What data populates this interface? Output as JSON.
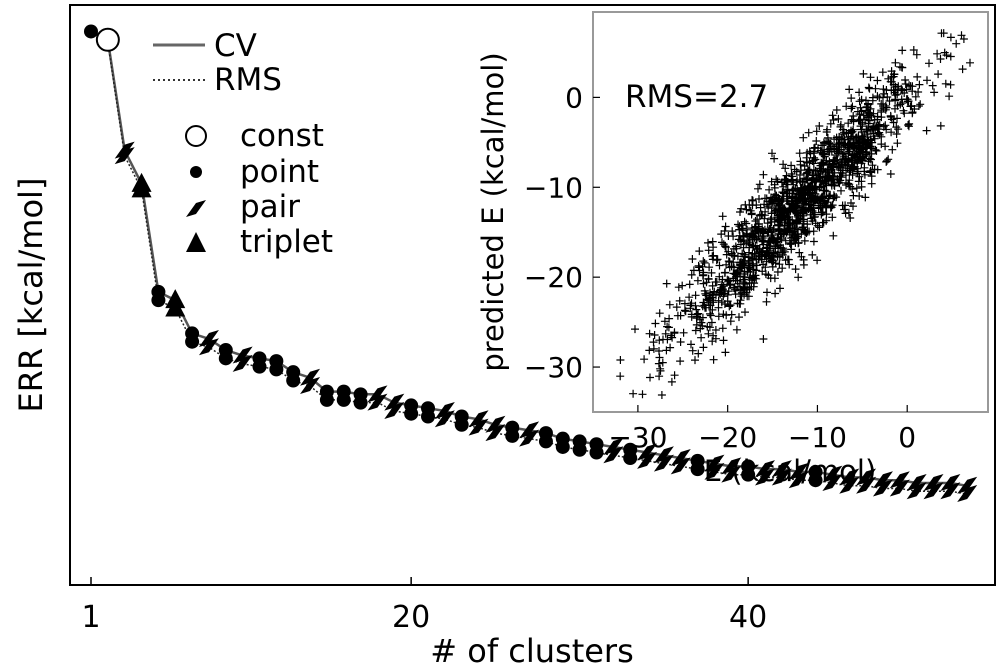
{
  "chart_data": [
    {
      "type": "line",
      "title": "",
      "xlabel": "# of clusters",
      "ylabel": "ERR [kcal/mol]",
      "xlim": [
        0,
        53
      ],
      "ylim": [
        0,
        10
      ],
      "x_ticks": [
        1,
        20,
        40
      ],
      "y_ticks": [],
      "grid": false,
      "legend_position": "top-left",
      "line_legend": [
        {
          "label": "CV",
          "style": "solid"
        },
        {
          "label": "RMS",
          "style": "dotted"
        }
      ],
      "marker_legend": [
        {
          "label": "const",
          "marker": "open-circle"
        },
        {
          "label": "point",
          "marker": "filled-circle"
        },
        {
          "label": "pair",
          "marker": "slash"
        },
        {
          "label": "triplet",
          "marker": "triangle"
        }
      ],
      "series": [
        {
          "name": "CV",
          "x": [
            1,
            2,
            3,
            4,
            5,
            6,
            7,
            8,
            9,
            10,
            11,
            12,
            13,
            14,
            15,
            16,
            17,
            18,
            19,
            20,
            21,
            22,
            23,
            24,
            25,
            26,
            27,
            28,
            29,
            30,
            31,
            32,
            33,
            34,
            35,
            36,
            37,
            38,
            39,
            40,
            41,
            42,
            43,
            44,
            45,
            46,
            47,
            48,
            49,
            50,
            51,
            52,
            53
          ],
          "y": [
            9.45,
            9.3,
            7.3,
            6.7,
            4.75,
            4.6,
            4.0,
            3.9,
            3.7,
            3.6,
            3.55,
            3.5,
            3.3,
            3.2,
            2.95,
            2.95,
            2.9,
            2.9,
            2.75,
            2.7,
            2.65,
            2.6,
            2.5,
            2.45,
            2.35,
            2.3,
            2.25,
            2.2,
            2.1,
            2.05,
            2.0,
            1.95,
            1.9,
            1.85,
            1.8,
            1.75,
            1.7,
            1.65,
            1.6,
            1.6,
            1.55,
            1.55,
            1.5,
            1.5,
            1.45,
            1.4,
            1.4,
            1.35,
            1.35,
            1.3,
            1.3,
            1.3,
            1.25
          ]
        },
        {
          "name": "RMS",
          "x": [
            1,
            2,
            3,
            4,
            5,
            6,
            7,
            8,
            9,
            10,
            11,
            12,
            13,
            14,
            15,
            16,
            17,
            18,
            19,
            20,
            21,
            22,
            23,
            24,
            25,
            26,
            27,
            28,
            29,
            30,
            31,
            32,
            33,
            34,
            35,
            36,
            37,
            38,
            39,
            40,
            41,
            42,
            43,
            44,
            45,
            46,
            47,
            48,
            49,
            50,
            51,
            52,
            53
          ],
          "y": [
            9.45,
            9.25,
            7.2,
            6.6,
            4.6,
            4.45,
            3.85,
            3.75,
            3.55,
            3.45,
            3.4,
            3.35,
            3.15,
            3.05,
            2.8,
            2.8,
            2.75,
            2.75,
            2.6,
            2.55,
            2.5,
            2.45,
            2.35,
            2.3,
            2.2,
            2.15,
            2.1,
            2.05,
            1.95,
            1.9,
            1.85,
            1.8,
            1.75,
            1.7,
            1.65,
            1.6,
            1.55,
            1.5,
            1.45,
            1.45,
            1.4,
            1.4,
            1.35,
            1.35,
            1.3,
            1.25,
            1.25,
            1.2,
            1.2,
            1.15,
            1.15,
            1.15,
            1.1
          ]
        }
      ],
      "markers": [
        {
          "x": 1,
          "type": "point"
        },
        {
          "x": 2,
          "type": "const"
        },
        {
          "x": 3,
          "type": "pair"
        },
        {
          "x": 4,
          "type": "triplet"
        },
        {
          "x": 5,
          "type": "point"
        },
        {
          "x": 6,
          "type": "triplet"
        },
        {
          "x": 7,
          "type": "point"
        },
        {
          "x": 8,
          "type": "pair"
        },
        {
          "x": 9,
          "type": "point"
        },
        {
          "x": 10,
          "type": "pair"
        },
        {
          "x": 11,
          "type": "point"
        },
        {
          "x": 12,
          "type": "point"
        },
        {
          "x": 13,
          "type": "point"
        },
        {
          "x": 14,
          "type": "pair"
        },
        {
          "x": 15,
          "type": "point"
        },
        {
          "x": 16,
          "type": "point"
        },
        {
          "x": 17,
          "type": "point"
        },
        {
          "x": 18,
          "type": "pair"
        },
        {
          "x": 19,
          "type": "pair"
        },
        {
          "x": 20,
          "type": "point"
        },
        {
          "x": 21,
          "type": "point"
        },
        {
          "x": 22,
          "type": "pair"
        },
        {
          "x": 23,
          "type": "point"
        },
        {
          "x": 24,
          "type": "pair"
        },
        {
          "x": 25,
          "type": "pair"
        },
        {
          "x": 26,
          "type": "point"
        },
        {
          "x": 27,
          "type": "pair"
        },
        {
          "x": 28,
          "type": "point"
        },
        {
          "x": 29,
          "type": "point"
        },
        {
          "x": 30,
          "type": "point"
        },
        {
          "x": 31,
          "type": "point"
        },
        {
          "x": 32,
          "type": "pair"
        },
        {
          "x": 33,
          "type": "point"
        },
        {
          "x": 34,
          "type": "pair"
        },
        {
          "x": 35,
          "type": "pair"
        },
        {
          "x": 36,
          "type": "pair"
        },
        {
          "x": 37,
          "type": "point"
        },
        {
          "x": 38,
          "type": "pair"
        },
        {
          "x": 39,
          "type": "pair"
        },
        {
          "x": 40,
          "type": "point"
        },
        {
          "x": 41,
          "type": "pair"
        },
        {
          "x": 42,
          "type": "pair"
        },
        {
          "x": 43,
          "type": "pair"
        },
        {
          "x": 44,
          "type": "point"
        },
        {
          "x": 45,
          "type": "pair"
        },
        {
          "x": 46,
          "type": "pair"
        },
        {
          "x": 47,
          "type": "pair"
        },
        {
          "x": 48,
          "type": "pair"
        },
        {
          "x": 49,
          "type": "pair"
        },
        {
          "x": 50,
          "type": "pair"
        },
        {
          "x": 51,
          "type": "pair"
        },
        {
          "x": 52,
          "type": "pair"
        },
        {
          "x": 53,
          "type": "pair"
        }
      ]
    },
    {
      "type": "scatter",
      "title": "",
      "xlabel": "E (kcal/mol)",
      "ylabel": "predicted E (kcal/mol)",
      "xlim": [
        -35,
        9
      ],
      "ylim": [
        -35,
        9.5
      ],
      "x_ticks": [
        -30,
        -20,
        -10,
        0
      ],
      "y_ticks": [
        -30,
        -20,
        -10,
        0
      ],
      "annotation": "RMS=2.7",
      "marker": "plus",
      "distribution": {
        "description_source": "visual",
        "n_points": 1500,
        "x_range": [
          -33,
          9
        ],
        "slope": 1.0,
        "intercept": 0,
        "rms": 2.7
      }
    }
  ]
}
